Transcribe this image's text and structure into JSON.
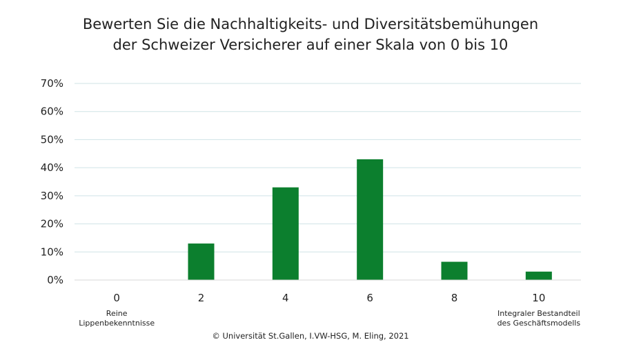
{
  "chart_data": {
    "type": "bar",
    "title_lines": [
      "Bewerten Sie die Nachhaltigkeits- und Diversitätsbemühungen",
      "der Schweizer Versicherer auf einer Skala von 0 bis 10"
    ],
    "categories": [
      "0",
      "2",
      "4",
      "6",
      "8",
      "10"
    ],
    "values": [
      0,
      13,
      33,
      43,
      6.5,
      3
    ],
    "ylim": [
      0,
      70
    ],
    "yticks": [
      "0%",
      "10%",
      "20%",
      "30%",
      "40%",
      "50%",
      "60%",
      "70%"
    ],
    "ytick_values": [
      0,
      10,
      20,
      30,
      40,
      50,
      60,
      70
    ],
    "xlabel": "",
    "ylabel": "",
    "grid": true,
    "bar_color": "#0c7f2e",
    "grid_color": "#cfe3e6",
    "axis_sublabels": {
      "left": [
        "Reine",
        "Lippenbekenntnisse"
      ],
      "right": [
        "Integraler Bestandteil",
        "des Geschäftsmodells"
      ]
    }
  },
  "footer": {
    "copyright": "© Universität St.Gallen, I.VW-HSG, M. Eling, 2021"
  }
}
